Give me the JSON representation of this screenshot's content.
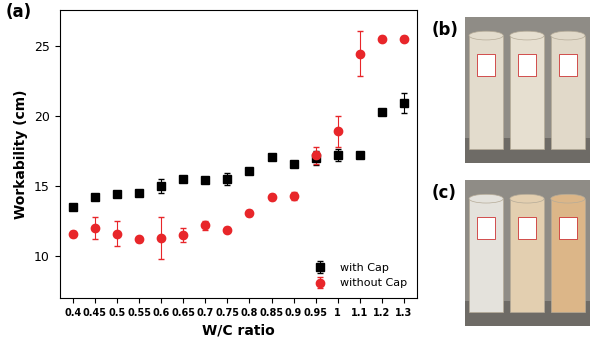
{
  "chart_data": {
    "type": "scatter",
    "title": "(a)",
    "x_label": "W/C ratio",
    "y_label": "Workability (cm)",
    "categories": [
      "0.4",
      "0.45",
      "0.5",
      "0.55",
      "0.6",
      "0.65",
      "0.7",
      "0.75",
      "0.8",
      "0.85",
      "0.9",
      "0.95",
      "1",
      "1.1",
      "1.2",
      "1.3"
    ],
    "series": [
      {
        "name": "with Cap",
        "color": "#000000",
        "marker": "square",
        "values": [
          13.5,
          14.2,
          14.4,
          14.5,
          15.0,
          15.5,
          15.4,
          15.5,
          16.1,
          17.1,
          16.6,
          17.0,
          17.2,
          17.2,
          20.3,
          20.9
        ],
        "errors": [
          0.2,
          0.2,
          0.2,
          0.2,
          0.5,
          0.2,
          0.2,
          0.4,
          0.2,
          0.2,
          0.2,
          0.5,
          0.4,
          0.2,
          0.2,
          0.7
        ]
      },
      {
        "name": "without Cap",
        "color": "#e8262a",
        "marker": "circle",
        "values": [
          11.6,
          12.0,
          11.6,
          11.2,
          11.3,
          11.5,
          12.2,
          11.9,
          13.1,
          14.2,
          14.3,
          17.2,
          18.9,
          24.4,
          25.5,
          25.5
        ],
        "errors": [
          0.2,
          0.8,
          0.9,
          0.2,
          1.5,
          0.5,
          0.3,
          0.2,
          0.2,
          0.2,
          0.3,
          0.6,
          1.1,
          1.6,
          0.2,
          0.2
        ]
      }
    ],
    "ylim": [
      7,
      27.5
    ],
    "yticks": [
      10,
      15,
      20,
      25
    ],
    "grid": false,
    "legend": "lower right"
  },
  "photos": [
    {
      "label": "(b)"
    },
    {
      "label": "(c)"
    }
  ]
}
